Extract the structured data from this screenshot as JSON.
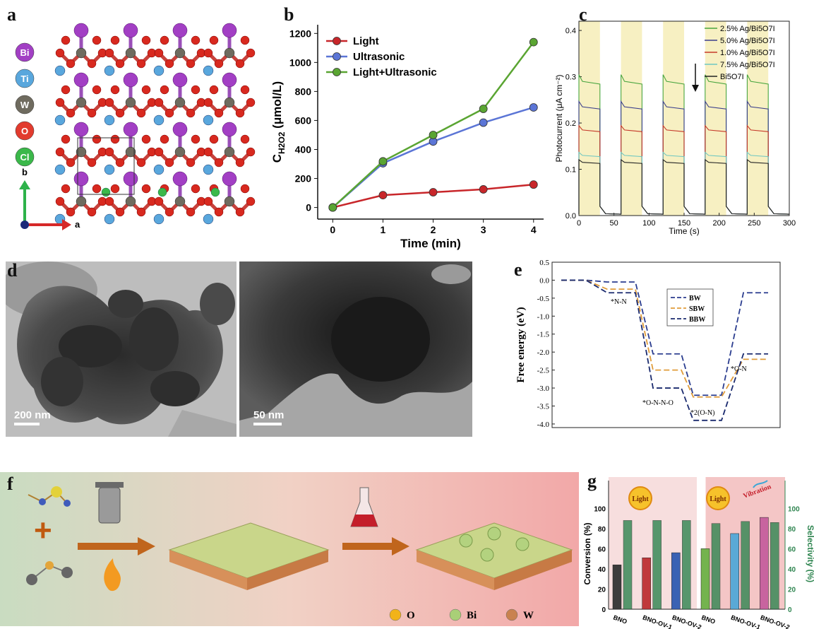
{
  "panel_a": {
    "label": "a",
    "legend": [
      {
        "name": "Bi",
        "color": "#a23fc4"
      },
      {
        "name": "Ti",
        "color": "#59a7dd"
      },
      {
        "name": "W",
        "color": "#6f6b5f"
      },
      {
        "name": "O",
        "color": "#e23b2e"
      },
      {
        "name": "Cl",
        "color": "#3bb84a"
      }
    ],
    "axis_b": "b",
    "axis_a": "a"
  },
  "panel_d": {
    "label": "d",
    "scale_left": "200 nm",
    "scale_right": "50 nm"
  },
  "panel_f": {
    "label": "f",
    "legend": [
      {
        "name": "O",
        "color": "#f2b319"
      },
      {
        "name": "Bi",
        "color": "#a9cf77"
      },
      {
        "name": "W",
        "color": "#c9824f"
      }
    ]
  },
  "chart_data": [
    {
      "id": "b",
      "label": "b",
      "type": "line",
      "xlabel": "Time (min)",
      "ylabel": "C",
      "ylabel_sub": "H2O2",
      "ylabel_unit": " (μmol/L)",
      "x": [
        0,
        1,
        2,
        3,
        4
      ],
      "xlim": [
        -0.3,
        4.2
      ],
      "ylim": [
        -80,
        1260
      ],
      "xticks": [
        "0",
        "1",
        "2",
        "3",
        "4"
      ],
      "yticks": [
        "0",
        "200",
        "400",
        "600",
        "800",
        "1000",
        "1200"
      ],
      "series": [
        {
          "name": "Light",
          "color": "#c8262a",
          "values": [
            0,
            85,
            105,
            125,
            158
          ]
        },
        {
          "name": "Ultrasonic",
          "color": "#5b75d6",
          "values": [
            0,
            305,
            455,
            585,
            690
          ]
        },
        {
          "name": "Light+Ultrasonic",
          "color": "#5aa532",
          "values": [
            0,
            318,
            500,
            680,
            1140
          ]
        }
      ]
    },
    {
      "id": "c",
      "label": "c",
      "type": "line",
      "xlabel": "Time (s)",
      "ylabel": "Photocurrent (μA cm⁻²)",
      "xlim": [
        0,
        300
      ],
      "ylim": [
        0,
        0.42
      ],
      "xticks": [
        "0",
        "50",
        "100",
        "150",
        "200",
        "250",
        "300"
      ],
      "yticks": [
        "0.0",
        "0.1",
        "0.2",
        "0.3",
        "0.4"
      ],
      "light_on_intervals": [
        [
          0,
          30
        ],
        [
          60,
          90
        ],
        [
          120,
          150
        ],
        [
          180,
          210
        ],
        [
          240,
          270
        ]
      ],
      "series": [
        {
          "name": "2.5% Ag/Bi5O7I",
          "color": "#49a53f",
          "on_value": 0.29
        },
        {
          "name": "5.0% Ag/Bi5O7I",
          "color": "#3b3f8c",
          "on_value": 0.235
        },
        {
          "name": "1.0% Ag/Bi5O7I",
          "color": "#c63a2a",
          "on_value": 0.185
        },
        {
          "name": "7.5% Ag/Bi5O7I",
          "color": "#6fc7c1",
          "on_value": 0.13
        },
        {
          "name": "Bi5O7I",
          "color": "#222222",
          "on_value": 0.115
        }
      ]
    },
    {
      "id": "e",
      "label": "e",
      "type": "line",
      "ylabel": "Free energy (eV)",
      "ylim": [
        -4.1,
        0.5
      ],
      "yticks": [
        "0.5",
        "0.0",
        "-0.5",
        "-1.0",
        "-1.5",
        "-2.0",
        "-2.5",
        "-3.0",
        "-3.5",
        "-4.0"
      ],
      "annotations": [
        "*N-N",
        "*O-N-N-O",
        "*2(O-N)",
        "*O-N"
      ],
      "series": [
        {
          "name": "BW",
          "color": "#2b3d8f",
          "values": [
            0.0,
            -0.05,
            -2.05,
            -3.2,
            -0.35
          ]
        },
        {
          "name": "SBW",
          "color": "#e09c3a",
          "values": [
            0.0,
            -0.25,
            -2.5,
            -3.25,
            -2.2
          ]
        },
        {
          "name": "BBW",
          "color": "#1a2a6e",
          "values": [
            0.0,
            -0.35,
            -3.0,
            -3.9,
            -2.05
          ]
        }
      ]
    },
    {
      "id": "g",
      "label": "g",
      "type": "bar",
      "categories": [
        "BNO",
        "BNO-OV-1",
        "BNO-OV-2",
        "BNO",
        "BNO-OV-1",
        "BNO-OV-2"
      ],
      "group_labels": [
        "Light",
        "Light",
        "Vibration"
      ],
      "ylabel_left": "Conversion (%)",
      "ylabel_right": "Selectivity (%)",
      "ylim": [
        0,
        110
      ],
      "yticks": [
        "0",
        "20",
        "40",
        "60",
        "80",
        "100"
      ],
      "series": [
        {
          "name": "Conversion",
          "colors": [
            "#3c3c3c",
            "#c0393b",
            "#3a62b4",
            "#74b34e",
            "#5aa9d6",
            "#c8649f"
          ],
          "values": [
            44,
            51,
            56,
            60,
            75,
            91
          ]
        },
        {
          "name": "Selectivity",
          "color": "#2f8550",
          "values": [
            88,
            88,
            88,
            85,
            87,
            86
          ]
        }
      ]
    }
  ]
}
